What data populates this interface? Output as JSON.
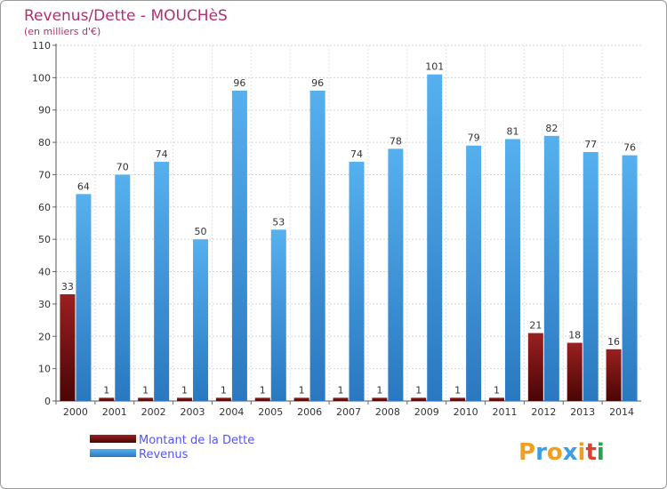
{
  "chart_data": {
    "type": "bar",
    "title": "Revenus/Dette - MOUCHèS",
    "subtitle": "(en milliers d'€)",
    "categories": [
      "2000",
      "2001",
      "2002",
      "2003",
      "2004",
      "2005",
      "2006",
      "2007",
      "2008",
      "2009",
      "2010",
      "2011",
      "2012",
      "2013",
      "2014"
    ],
    "series": [
      {
        "name": "Montant de la Dette",
        "color": "#7a1010",
        "values": [
          33,
          1,
          1,
          1,
          1,
          1,
          1,
          1,
          1,
          1,
          1,
          1,
          21,
          18,
          16
        ]
      },
      {
        "name": "Revenus",
        "color": "#3d9ee6",
        "values": [
          64,
          70,
          74,
          50,
          96,
          53,
          96,
          74,
          78,
          101,
          79,
          81,
          82,
          77,
          76
        ]
      }
    ],
    "ylim": [
      0,
      110
    ],
    "yticks": [
      0,
      10,
      20,
      30,
      40,
      50,
      60,
      70,
      80,
      90,
      100,
      110
    ],
    "grid": true,
    "legend": "bottom-left",
    "xlabel": "",
    "ylabel": ""
  },
  "branding": {
    "logo_text": "Proxiti",
    "colors": [
      "#f0a020",
      "#3d9ee6",
      "#f0a020",
      "#3d9ee6",
      "#f0a020",
      "#e04030",
      "#2aa050"
    ]
  }
}
